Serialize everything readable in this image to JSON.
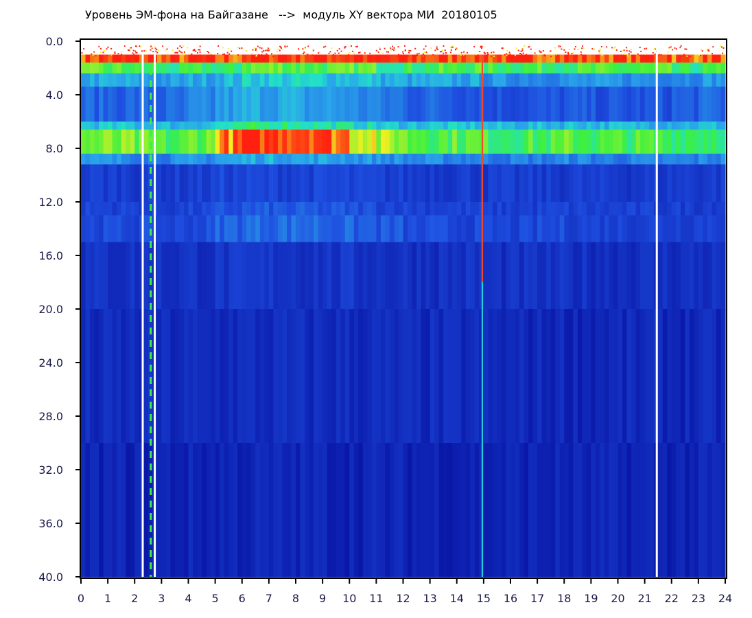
{
  "chart_data": {
    "type": "heatmap",
    "title": "Уровень ЭМ-фона на Байгазане   -->  модуль XY вектора МИ  20180105",
    "xlim": [
      0,
      24
    ],
    "ylim": [
      0,
      40
    ],
    "y_inverted": true,
    "x_ticks": [
      "0",
      "1",
      "2",
      "3",
      "4",
      "5",
      "6",
      "7",
      "8",
      "9",
      "10",
      "11",
      "12",
      "13",
      "14",
      "15",
      "16",
      "17",
      "18",
      "19",
      "20",
      "21",
      "22",
      "23",
      "24"
    ],
    "y_ticks": [
      "0.0",
      "4.0",
      "8.0",
      "12.0",
      "16.0",
      "20.0",
      "24.0",
      "28.0",
      "32.0",
      "36.0",
      "40.0"
    ],
    "colormap": {
      "0": "#0a18a8",
      "0.25": "#1e4ee0",
      "0.45": "#2aa6ea",
      "0.55": "#22e0c8",
      "0.65": "#3cf040",
      "0.78": "#f4f020",
      "0.9": "#ff2010"
    },
    "x_hours": [
      0,
      1,
      2,
      3,
      4,
      5,
      6,
      7,
      8,
      9,
      10,
      11,
      12,
      13,
      14,
      15,
      16,
      17,
      18,
      19,
      20,
      21,
      22,
      23
    ],
    "y_edges": [
      1,
      1.6,
      2.4,
      3.4,
      6,
      6.6,
      8.4,
      9.2,
      12,
      13,
      15,
      20,
      30,
      40
    ],
    "z": [
      [
        0.88,
        0.88,
        0.88,
        0.86,
        0.88,
        0.86,
        0.9,
        0.9,
        0.9,
        0.9,
        0.9,
        0.88,
        0.88,
        0.88,
        0.9,
        0.88,
        0.88,
        0.88,
        0.88,
        0.88,
        0.88,
        0.9,
        0.86,
        0.88
      ],
      [
        0.65,
        0.65,
        0.62,
        0.6,
        0.62,
        0.6,
        0.68,
        0.68,
        0.66,
        0.65,
        0.66,
        0.62,
        0.62,
        0.64,
        0.65,
        0.64,
        0.64,
        0.64,
        0.64,
        0.64,
        0.64,
        0.64,
        0.6,
        0.62
      ],
      [
        0.45,
        0.45,
        0.42,
        0.42,
        0.45,
        0.48,
        0.52,
        0.52,
        0.52,
        0.5,
        0.5,
        0.46,
        0.44,
        0.44,
        0.44,
        0.4,
        0.4,
        0.4,
        0.4,
        0.4,
        0.4,
        0.4,
        0.4,
        0.42
      ],
      [
        0.3,
        0.3,
        0.3,
        0.3,
        0.36,
        0.42,
        0.45,
        0.45,
        0.42,
        0.42,
        0.38,
        0.34,
        0.3,
        0.3,
        0.28,
        0.25,
        0.25,
        0.25,
        0.26,
        0.25,
        0.25,
        0.25,
        0.28,
        0.3
      ],
      [
        0.5,
        0.5,
        0.48,
        0.48,
        0.5,
        0.55,
        0.6,
        0.6,
        0.58,
        0.56,
        0.54,
        0.5,
        0.5,
        0.5,
        0.5,
        0.48,
        0.48,
        0.48,
        0.5,
        0.48,
        0.48,
        0.48,
        0.48,
        0.48
      ],
      [
        0.68,
        0.68,
        0.66,
        0.64,
        0.68,
        0.84,
        0.9,
        0.9,
        0.9,
        0.86,
        0.78,
        0.72,
        0.68,
        0.66,
        0.66,
        0.64,
        0.64,
        0.64,
        0.66,
        0.64,
        0.64,
        0.64,
        0.64,
        0.64
      ],
      [
        0.4,
        0.4,
        0.38,
        0.38,
        0.4,
        0.44,
        0.46,
        0.46,
        0.44,
        0.44,
        0.42,
        0.4,
        0.38,
        0.38,
        0.38,
        0.36,
        0.36,
        0.36,
        0.38,
        0.36,
        0.36,
        0.36,
        0.36,
        0.38
      ],
      [
        0.18,
        0.18,
        0.17,
        0.17,
        0.18,
        0.2,
        0.2,
        0.2,
        0.2,
        0.2,
        0.19,
        0.18,
        0.17,
        0.17,
        0.17,
        0.16,
        0.16,
        0.16,
        0.17,
        0.16,
        0.16,
        0.16,
        0.17,
        0.17
      ],
      [
        0.2,
        0.2,
        0.19,
        0.19,
        0.2,
        0.24,
        0.26,
        0.26,
        0.26,
        0.25,
        0.24,
        0.22,
        0.2,
        0.2,
        0.19,
        0.18,
        0.18,
        0.19,
        0.19,
        0.18,
        0.18,
        0.18,
        0.18,
        0.19
      ],
      [
        0.22,
        0.22,
        0.21,
        0.21,
        0.23,
        0.3,
        0.32,
        0.32,
        0.32,
        0.3,
        0.28,
        0.26,
        0.22,
        0.22,
        0.21,
        0.2,
        0.2,
        0.22,
        0.21,
        0.2,
        0.2,
        0.2,
        0.2,
        0.21
      ],
      [
        0.12,
        0.12,
        0.12,
        0.12,
        0.12,
        0.13,
        0.13,
        0.14,
        0.13,
        0.13,
        0.13,
        0.12,
        0.12,
        0.12,
        0.12,
        0.11,
        0.11,
        0.11,
        0.11,
        0.11,
        0.11,
        0.11,
        0.11,
        0.11
      ],
      [
        0.08,
        0.08,
        0.08,
        0.08,
        0.08,
        0.09,
        0.09,
        0.09,
        0.09,
        0.09,
        0.09,
        0.08,
        0.08,
        0.08,
        0.08,
        0.07,
        0.07,
        0.07,
        0.07,
        0.07,
        0.07,
        0.07,
        0.07,
        0.07
      ],
      [
        0.05,
        0.05,
        0.05,
        0.05,
        0.05,
        0.06,
        0.06,
        0.06,
        0.06,
        0.06,
        0.06,
        0.05,
        0.05,
        0.05,
        0.05,
        0.05,
        0.05,
        0.05,
        0.05,
        0.05,
        0.05,
        0.05,
        0.05,
        0.05
      ]
    ],
    "data_gaps_x": [
      2.3,
      2.75,
      21.45
    ],
    "bright_lines_x": [
      2.6,
      14.95
    ]
  }
}
